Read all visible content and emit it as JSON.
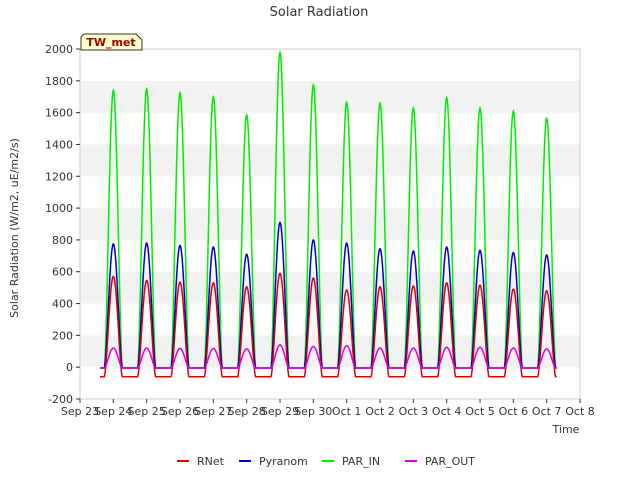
{
  "chart_data": {
    "type": "line",
    "title": "Solar Radiation",
    "xlabel": "Time",
    "ylabel": "Solar Radiation (W/m2, uE/m2/s)",
    "ylim": [
      -200,
      2000
    ],
    "yticks": [
      -200,
      0,
      200,
      400,
      600,
      800,
      1000,
      1200,
      1400,
      1600,
      1800,
      2000
    ],
    "xticks": [
      "Sep 23",
      "Sep 24",
      "Sep 25",
      "Sep 26",
      "Sep 27",
      "Sep 28",
      "Sep 29",
      "Sep 30",
      "Oct 1",
      "Oct 2",
      "Oct 3",
      "Oct 4",
      "Oct 5",
      "Oct 6",
      "Oct 7",
      "Oct 8"
    ],
    "xrange_days": [
      0,
      15
    ],
    "grid": "horizontal bands",
    "legend": "bottom",
    "site_label": "TW_met",
    "series": [
      {
        "name": "RNet",
        "color": "#dd0000",
        "night": -60,
        "peaks": [
          570,
          545,
          535,
          530,
          505,
          590,
          560,
          485,
          505,
          510,
          530,
          515,
          490,
          480
        ]
      },
      {
        "name": "Pyranom",
        "color": "#0000cc",
        "night": -5,
        "peaks": [
          775,
          780,
          765,
          755,
          710,
          910,
          800,
          780,
          745,
          730,
          755,
          735,
          720,
          705
        ]
      },
      {
        "name": "PAR_IN",
        "color": "#00ee00",
        "night": -5,
        "peaks": [
          1740,
          1750,
          1725,
          1700,
          1585,
          1980,
          1775,
          1665,
          1660,
          1630,
          1695,
          1630,
          1610,
          1565
        ]
      },
      {
        "name": "PAR_OUT",
        "color": "#dd00dd",
        "night": -5,
        "peaks": [
          120,
          120,
          118,
          118,
          115,
          140,
          130,
          135,
          120,
          120,
          125,
          125,
          120,
          115
        ]
      }
    ],
    "day_centers": [
      1.0,
      2.0,
      3.0,
      4.0,
      5.0,
      6.0,
      7.0,
      8.0,
      9.0,
      10.0,
      11.0,
      12.0,
      13.0,
      14.0
    ]
  }
}
